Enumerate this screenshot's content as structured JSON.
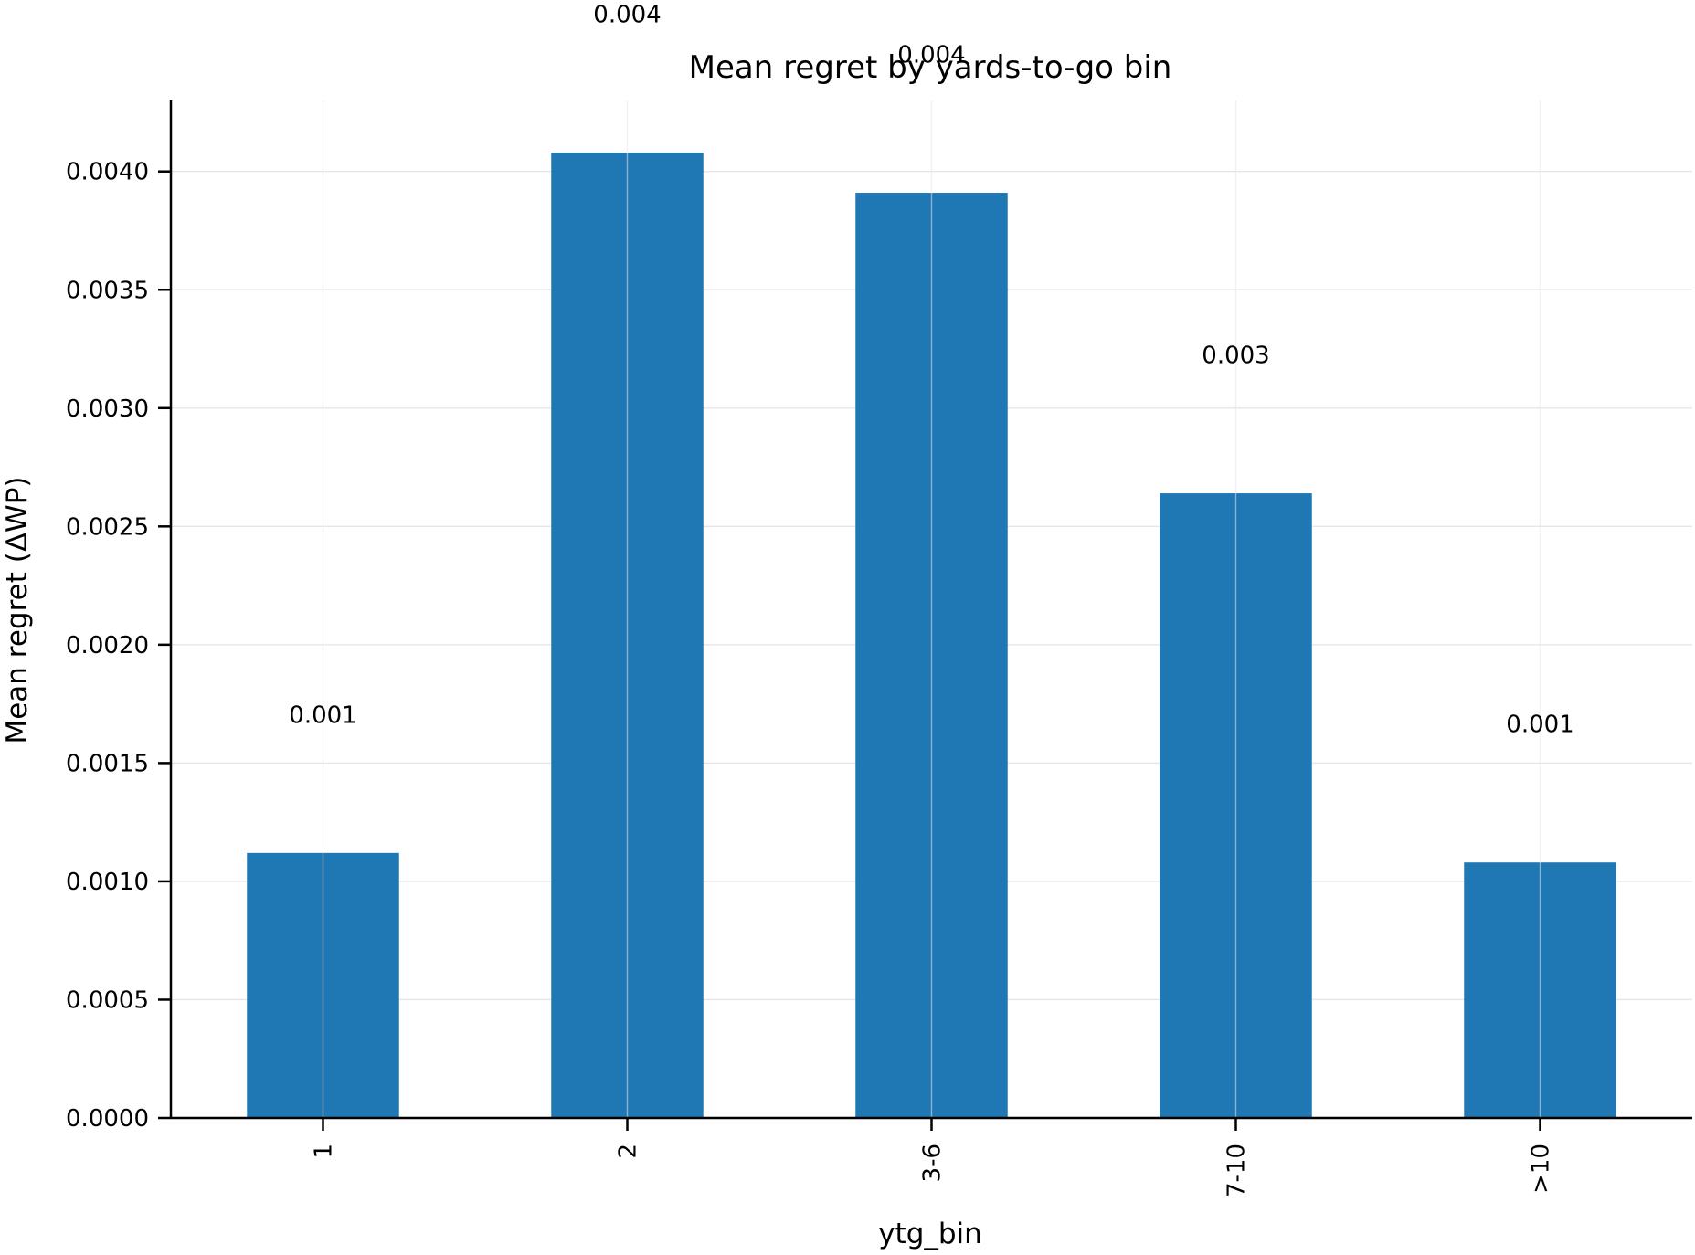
{
  "chart_data": {
    "type": "bar",
    "title": "Mean regret by yards-to-go bin",
    "xlabel": "ytg_bin",
    "ylabel": "Mean regret (ΔWP)",
    "categories": [
      "1",
      "2",
      "3-6",
      "7-10",
      ">10"
    ],
    "values": [
      0.00112,
      0.00408,
      0.00391,
      0.00264,
      0.00108
    ],
    "data_labels": [
      "0.001",
      "0.004",
      "0.004",
      "0.003",
      "0.001"
    ],
    "ylim": [
      0,
      0.0043
    ],
    "yticks": [
      0.0,
      0.0005,
      0.001,
      0.0015,
      0.002,
      0.0025,
      0.003,
      0.0035,
      0.004
    ],
    "ytick_labels": [
      "0.0000",
      "0.0005",
      "0.0010",
      "0.0015",
      "0.0020",
      "0.0025",
      "0.0030",
      "0.0035",
      "0.0040"
    ],
    "grid": true,
    "bar_color": "#1f77b4"
  }
}
